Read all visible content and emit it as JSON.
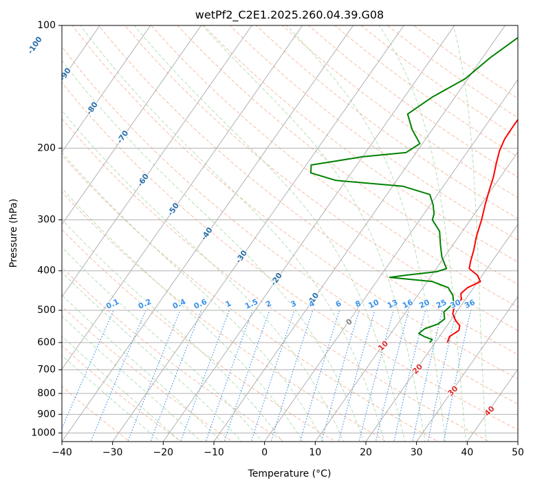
{
  "chart_data": {
    "type": "line",
    "title": "wetPf2_C2E1.2025.260.04.39.G08",
    "xlabel": "Temperature (°C)",
    "ylabel": "Pressure (hPa)",
    "xlim": [
      -40,
      50
    ],
    "ylim": [
      1050,
      100
    ],
    "y_scale": "log",
    "x_ticks": [
      -40,
      -30,
      -20,
      -10,
      0,
      10,
      20,
      30,
      40,
      50
    ],
    "y_ticks": [
      100,
      200,
      300,
      400,
      500,
      600,
      700,
      800,
      900,
      1000
    ],
    "grid": true,
    "colors": {
      "temperature": "#ff0000",
      "dewpoint": "#008000",
      "isotherm": "#b0b0b0",
      "dry_adiabat": "#f4a582",
      "moist_adiabat": "#a6d9a6",
      "mixing_ratio": "#3a92e8",
      "isotherm_label": "#2a6fa8",
      "warm_label": "#d93030",
      "zero_label": "#808080"
    },
    "series": [
      {
        "key": "temperature",
        "points": [
          [
            22.4,
            600
          ],
          [
            22.0,
            580
          ],
          [
            23.0,
            560
          ],
          [
            22.5,
            545
          ],
          [
            21.0,
            530
          ],
          [
            19.5,
            510
          ],
          [
            18.8,
            490
          ],
          [
            19.2,
            470
          ],
          [
            18.3,
            455
          ],
          [
            18.8,
            440
          ],
          [
            20.5,
            425
          ],
          [
            19.0,
            410
          ],
          [
            16.5,
            395
          ],
          [
            15.8,
            380
          ],
          [
            14.8,
            355
          ],
          [
            13.5,
            330
          ],
          [
            12.2,
            300
          ],
          [
            10.8,
            275
          ],
          [
            9.7,
            255
          ],
          [
            8.6,
            235
          ],
          [
            7.3,
            218
          ],
          [
            6.2,
            203
          ],
          [
            5.6,
            190
          ],
          [
            5.5,
            175
          ],
          [
            5.6,
            160
          ],
          [
            5.4,
            145
          ],
          [
            4.7,
            130
          ],
          [
            4.8,
            120
          ],
          [
            5.8,
            112
          ],
          [
            7.2,
            106
          ],
          [
            8.6,
            100
          ]
        ]
      },
      {
        "key": "dewpoint",
        "points": [
          [
            18.9,
            600
          ],
          [
            19.0,
            590
          ],
          [
            17.0,
            580
          ],
          [
            15.5,
            570
          ],
          [
            16.0,
            555
          ],
          [
            18.0,
            540
          ],
          [
            18.6,
            525
          ],
          [
            17.5,
            505
          ],
          [
            18.2,
            480
          ],
          [
            17.0,
            460
          ],
          [
            15.0,
            440
          ],
          [
            11.0,
            425
          ],
          [
            2.0,
            415
          ],
          [
            5.0,
            410
          ],
          [
            10.5,
            402
          ],
          [
            12.0,
            395
          ],
          [
            9.5,
            370
          ],
          [
            7.5,
            345
          ],
          [
            5.5,
            320
          ],
          [
            2.5,
            300
          ],
          [
            2.0,
            290
          ],
          [
            0.5,
            275
          ],
          [
            -1.5,
            260
          ],
          [
            -8.0,
            248
          ],
          [
            -22.0,
            240
          ],
          [
            -28.0,
            230
          ],
          [
            -29.0,
            220
          ],
          [
            -20.0,
            210
          ],
          [
            -12.0,
            205
          ],
          [
            -10.5,
            195
          ],
          [
            -14.0,
            180
          ],
          [
            -17.0,
            165
          ],
          [
            -14.5,
            150
          ],
          [
            -10.5,
            135
          ],
          [
            -8.5,
            120
          ],
          [
            -6.0,
            108
          ],
          [
            -4.0,
            100
          ]
        ]
      }
    ],
    "isotherm_labels": [
      "-100",
      "-90",
      "-80",
      "-70",
      "-60",
      "-50",
      "-40",
      "-30",
      "-20",
      "-10"
    ],
    "mixing_ratio_labels": [
      "0.1",
      "0.2",
      "0.4",
      "0.6",
      "1",
      "1.5",
      "2",
      "3",
      "4",
      "6",
      "8",
      "10",
      "13",
      "16",
      "20",
      "25",
      "30",
      "36"
    ],
    "warm_labels": [
      "0",
      "10",
      "20",
      "30",
      "40"
    ]
  }
}
